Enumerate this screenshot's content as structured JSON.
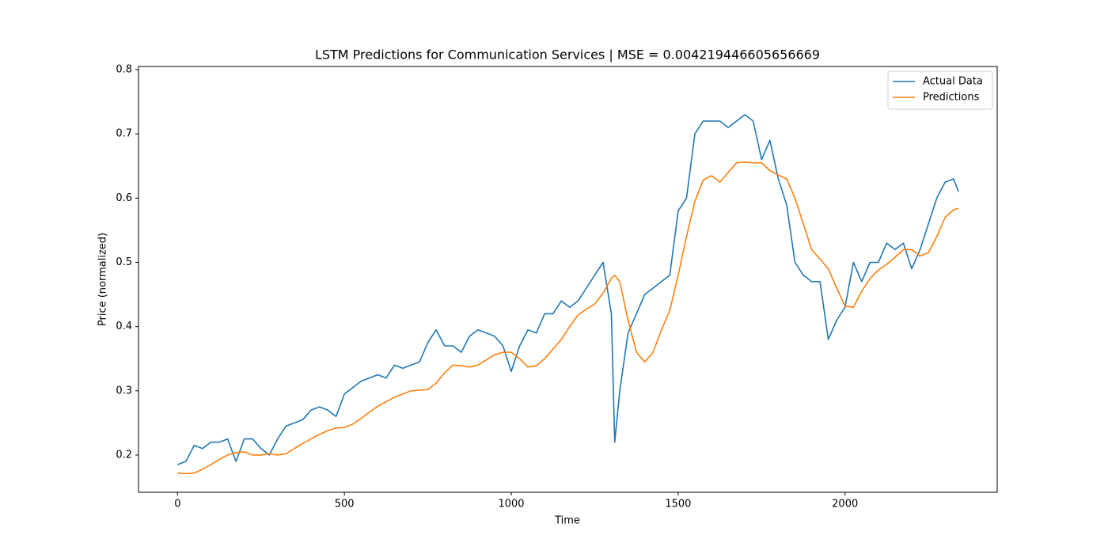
{
  "chart_data": {
    "type": "line",
    "title": "LSTM Predictions for Communication Services | MSE = 0.004219446605656669",
    "xlabel": "Time",
    "ylabel": "Price (normalized)",
    "x": [
      0,
      25,
      50,
      75,
      100,
      125,
      150,
      175,
      200,
      225,
      250,
      275,
      300,
      325,
      350,
      375,
      400,
      425,
      450,
      475,
      500,
      525,
      550,
      575,
      600,
      625,
      650,
      675,
      700,
      725,
      750,
      775,
      800,
      825,
      850,
      875,
      900,
      925,
      950,
      975,
      1000,
      1025,
      1050,
      1075,
      1100,
      1125,
      1150,
      1175,
      1200,
      1225,
      1250,
      1275,
      1300,
      1310,
      1325,
      1350,
      1375,
      1400,
      1425,
      1450,
      1475,
      1500,
      1525,
      1550,
      1575,
      1600,
      1625,
      1650,
      1675,
      1700,
      1725,
      1750,
      1775,
      1800,
      1825,
      1850,
      1875,
      1900,
      1925,
      1950,
      1975,
      2000,
      2025,
      2050,
      2075,
      2100,
      2125,
      2150,
      2175,
      2200,
      2225,
      2250,
      2275,
      2300,
      2325,
      2340
    ],
    "series": [
      {
        "name": "Actual Data",
        "color": "#1f77b4",
        "values": [
          0.185,
          0.19,
          0.215,
          0.21,
          0.22,
          0.22,
          0.225,
          0.19,
          0.225,
          0.225,
          0.21,
          0.2,
          0.225,
          0.245,
          0.25,
          0.255,
          0.27,
          0.275,
          0.27,
          0.26,
          0.295,
          0.305,
          0.315,
          0.32,
          0.325,
          0.32,
          0.34,
          0.335,
          0.34,
          0.345,
          0.375,
          0.395,
          0.37,
          0.37,
          0.36,
          0.385,
          0.395,
          0.39,
          0.385,
          0.37,
          0.33,
          0.37,
          0.395,
          0.39,
          0.42,
          0.42,
          0.44,
          0.43,
          0.44,
          0.46,
          0.48,
          0.5,
          0.42,
          0.22,
          0.3,
          0.39,
          0.42,
          0.45,
          0.46,
          0.47,
          0.48,
          0.58,
          0.6,
          0.7,
          0.72,
          0.72,
          0.72,
          0.71,
          0.72,
          0.73,
          0.72,
          0.66,
          0.69,
          0.63,
          0.59,
          0.5,
          0.48,
          0.47,
          0.47,
          0.38,
          0.41,
          0.43,
          0.5,
          0.47,
          0.5,
          0.5,
          0.53,
          0.52,
          0.53,
          0.49,
          0.52,
          0.56,
          0.6,
          0.625,
          0.63,
          0.61
        ]
      },
      {
        "name": "Predictions",
        "color": "#ff7f0e",
        "values": [
          0.172,
          0.171,
          0.172,
          0.178,
          0.185,
          0.193,
          0.2,
          0.204,
          0.205,
          0.2,
          0.2,
          0.202,
          0.2,
          0.202,
          0.21,
          0.218,
          0.225,
          0.232,
          0.238,
          0.242,
          0.243,
          0.248,
          0.257,
          0.267,
          0.276,
          0.283,
          0.29,
          0.295,
          0.3,
          0.301,
          0.302,
          0.312,
          0.328,
          0.34,
          0.339,
          0.337,
          0.34,
          0.348,
          0.356,
          0.36,
          0.36,
          0.35,
          0.337,
          0.339,
          0.35,
          0.365,
          0.38,
          0.4,
          0.418,
          0.427,
          0.435,
          0.452,
          0.475,
          0.48,
          0.47,
          0.41,
          0.36,
          0.345,
          0.36,
          0.395,
          0.425,
          0.48,
          0.54,
          0.595,
          0.628,
          0.635,
          0.625,
          0.64,
          0.655,
          0.656,
          0.655,
          0.655,
          0.643,
          0.636,
          0.63,
          0.6,
          0.56,
          0.52,
          0.505,
          0.49,
          0.46,
          0.432,
          0.43,
          0.455,
          0.475,
          0.488,
          0.497,
          0.508,
          0.52,
          0.52,
          0.51,
          0.515,
          0.54,
          0.57,
          0.582,
          0.584
        ]
      }
    ],
    "xlim": [
      -117,
      2456
    ],
    "ylim": [
      0.142,
      0.805
    ],
    "xticks": [
      0,
      500,
      1000,
      1500,
      2000
    ],
    "yticks": [
      0.2,
      0.3,
      0.4,
      0.5,
      0.6,
      0.7,
      0.8
    ],
    "legend": "upper right",
    "grid": false
  }
}
